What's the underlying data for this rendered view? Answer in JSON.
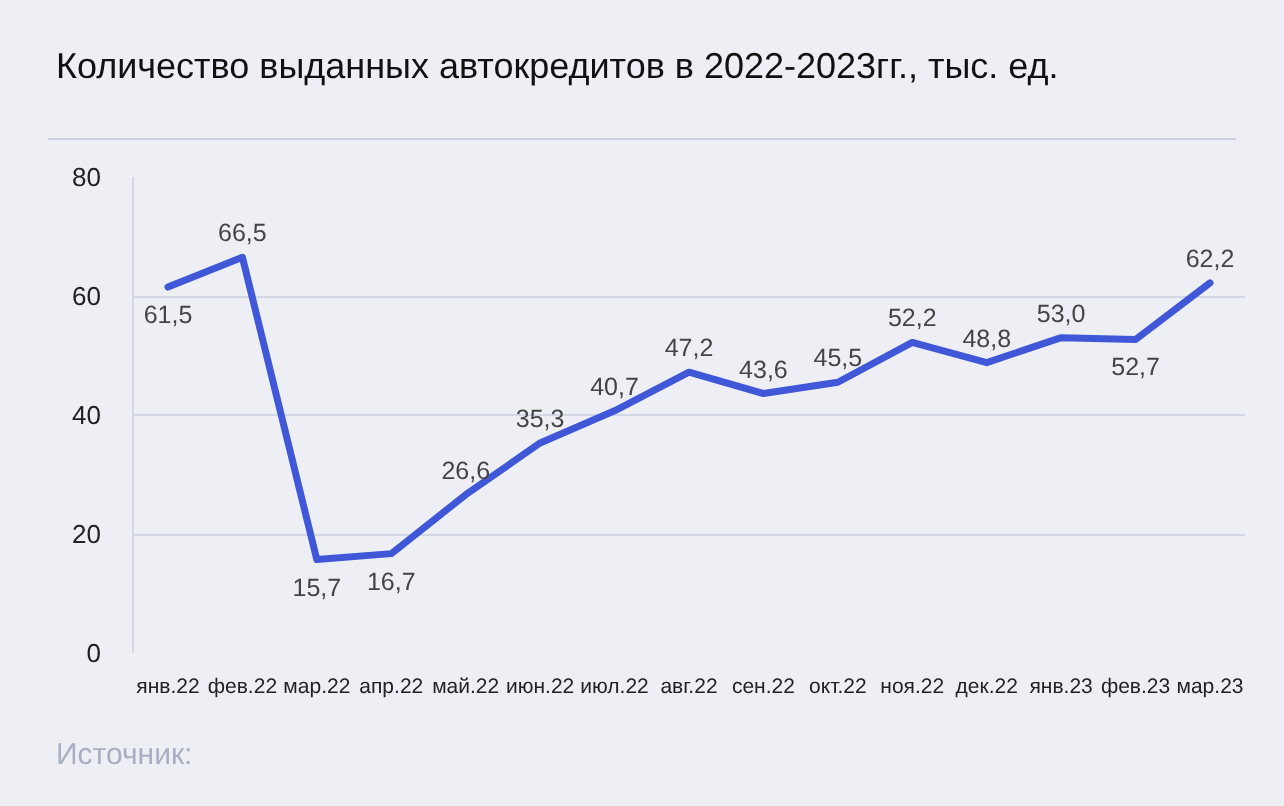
{
  "chart_data": {
    "type": "line",
    "title": "Количество выданных автокредитов в 2022-2023гг., тыс. ед.",
    "categories": [
      "янв.22",
      "фев.22",
      "мар.22",
      "апр.22",
      "май.22",
      "июн.22",
      "июл.22",
      "авг.22",
      "сен.22",
      "окт.22",
      "ноя.22",
      "дек.22",
      "янв.23",
      "фев.23",
      "мар.23"
    ],
    "color": "#4058d8",
    "values": [
      61.5,
      66.5,
      15.7,
      16.7,
      26.6,
      35.3,
      40.7,
      47.2,
      43.6,
      45.5,
      52.2,
      48.8,
      53.0,
      52.7,
      62.2
    ],
    "value_labels": [
      "61,5",
      "66,5",
      "15,7",
      "16,7",
      "26,6",
      "35,3",
      "40,7",
      "47,2",
      "43,6",
      "45,5",
      "52,2",
      "48,8",
      "53,0",
      "52,7",
      "62,2"
    ],
    "ylim": [
      0,
      80
    ],
    "yticks": [
      0,
      20,
      40,
      60,
      80
    ],
    "grid": "y",
    "line_style": "solid",
    "annotations": [
      "Источник:"
    ]
  }
}
